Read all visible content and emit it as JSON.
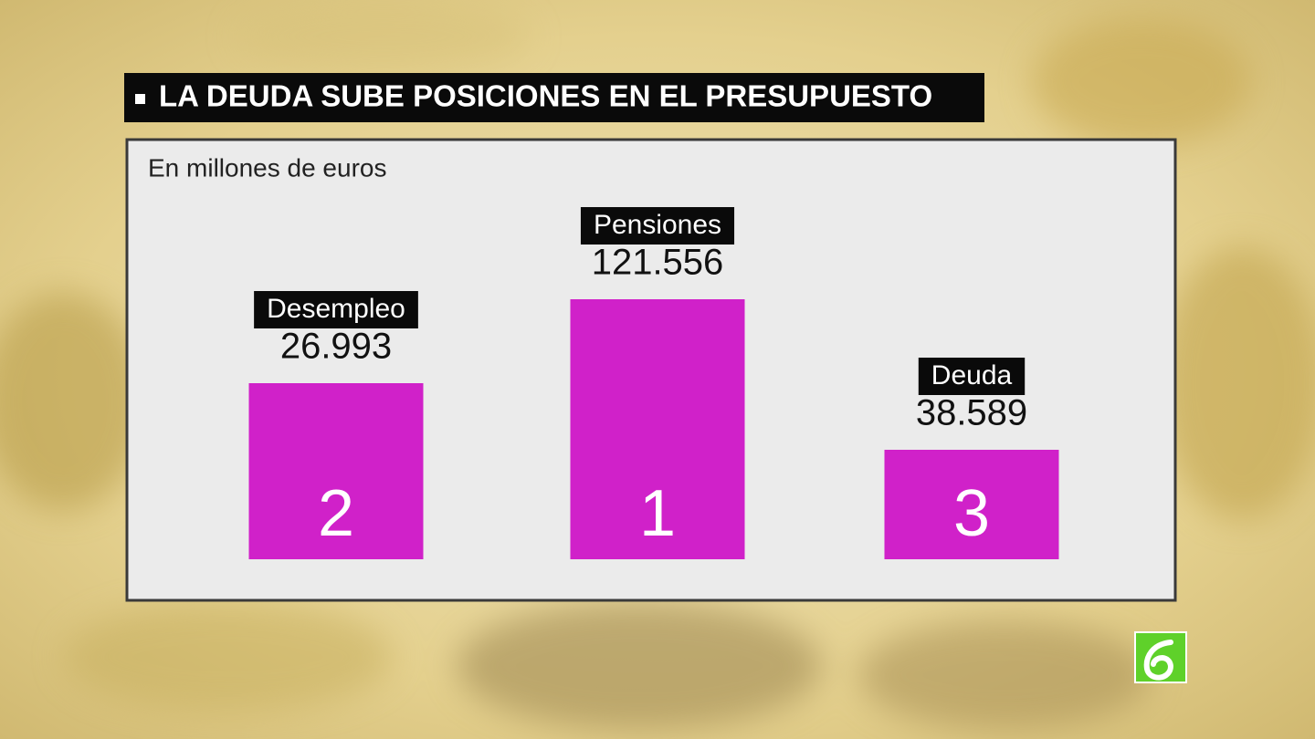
{
  "chart_data": {
    "type": "bar",
    "title": "LA DEUDA SUBE POSICIONES EN EL PRESUPUESTO",
    "subtitle": "En millones de euros",
    "categories": [
      "Desempleo",
      "Pensiones",
      "Deuda"
    ],
    "values": [
      26993,
      121556,
      38589
    ],
    "value_labels": [
      "26.993",
      "121.556",
      "38.589"
    ],
    "ranks": [
      2,
      1,
      3
    ],
    "color": "#d021c9"
  }
}
